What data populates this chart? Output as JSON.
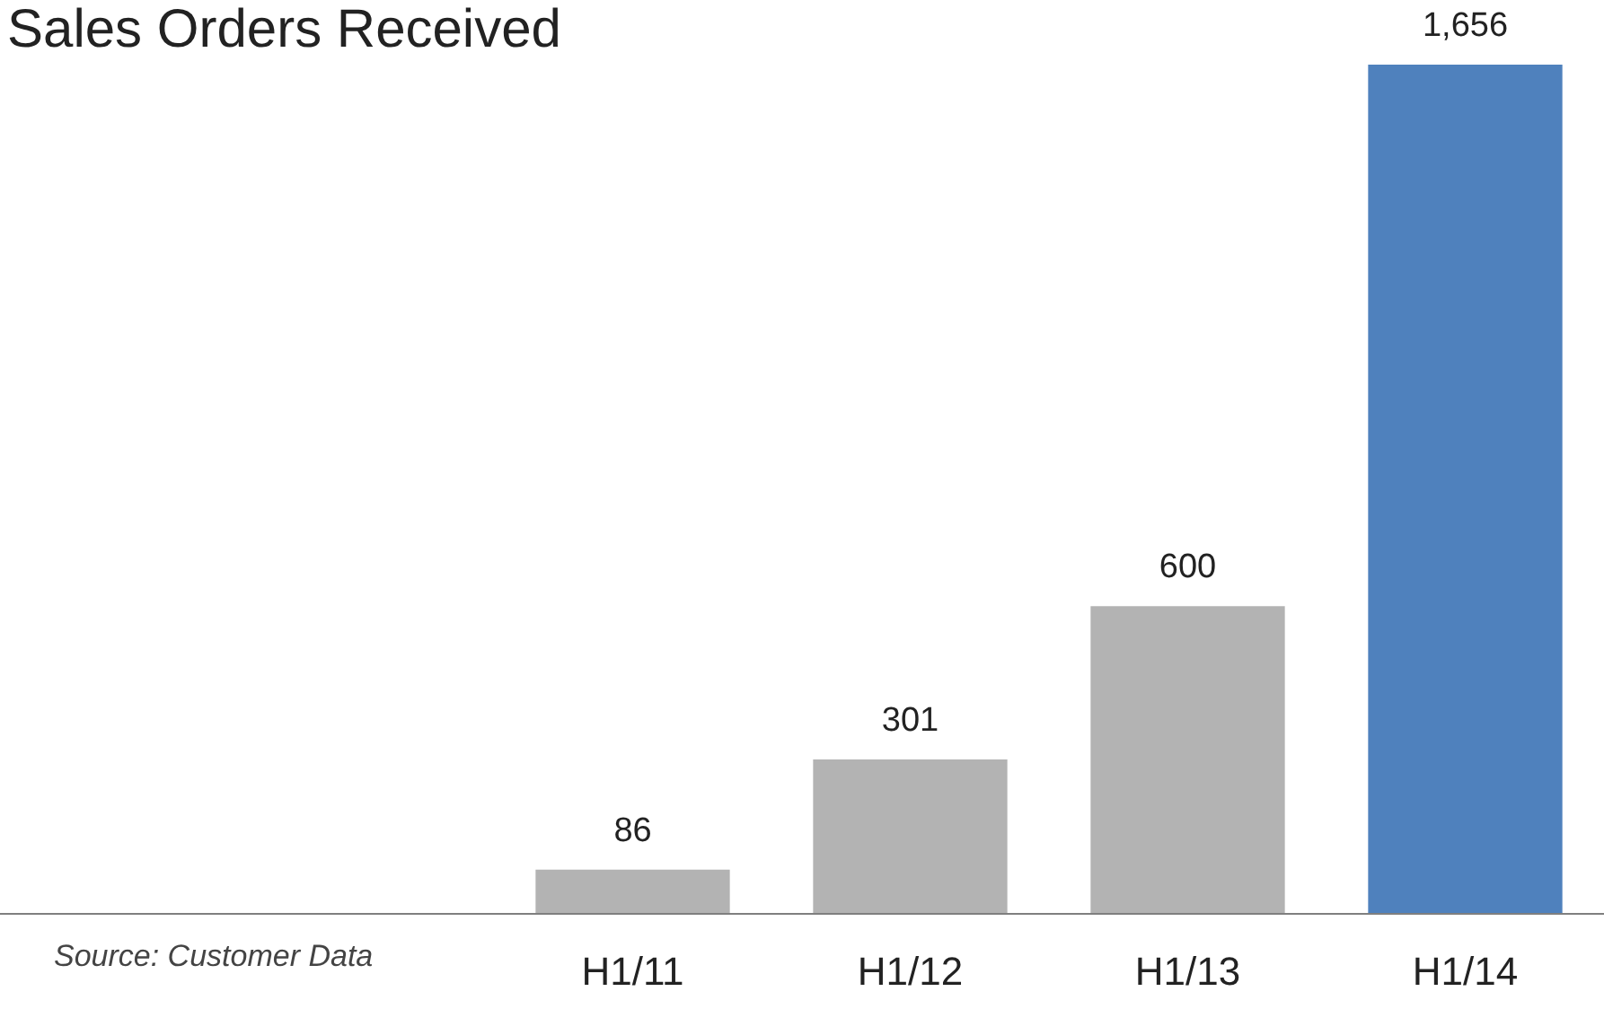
{
  "chart_data": {
    "type": "bar",
    "title": "Sales Orders Received",
    "categories": [
      "H1/11",
      "H1/12",
      "H1/13",
      "H1/14"
    ],
    "values": [
      86,
      301,
      600,
      1656
    ],
    "colors": [
      "#b3b3b3",
      "#b3b3b3",
      "#b3b3b3",
      "#4f81bd"
    ],
    "value_labels": [
      "86",
      "301",
      "600",
      "1,656"
    ],
    "annotations": [
      "Source: Customer Data"
    ]
  }
}
